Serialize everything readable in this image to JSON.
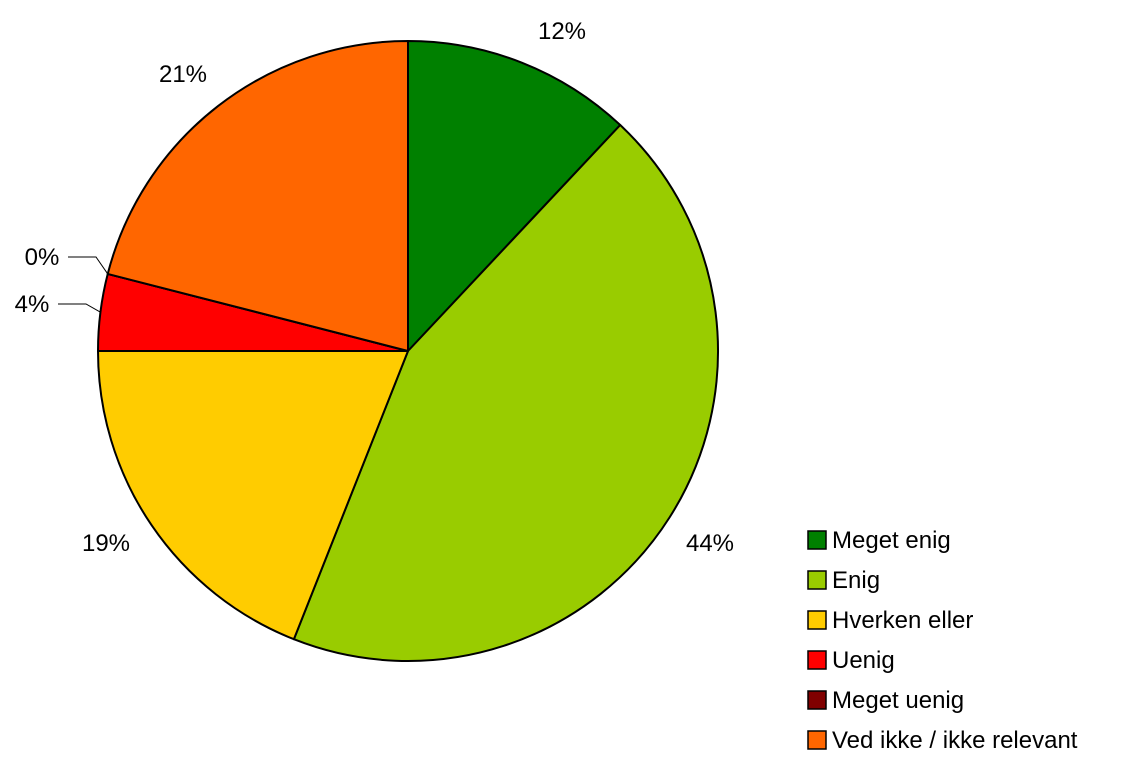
{
  "chart_data": {
    "type": "pie",
    "title": "",
    "legend_position": "bottom-right",
    "slices": [
      {
        "name": "Meget enig",
        "value": 12,
        "label": "12%",
        "color": "#008000"
      },
      {
        "name": "Enig",
        "value": 44,
        "label": "44%",
        "color": "#99CC00"
      },
      {
        "name": "Hverken eller",
        "value": 19,
        "label": "19%",
        "color": "#FFCC00"
      },
      {
        "name": "Uenig",
        "value": 4,
        "label": "4%",
        "color": "#FF0000"
      },
      {
        "name": "Meget uenig",
        "value": 0,
        "label": "0%",
        "color": "#800000"
      },
      {
        "name": "Ved ikke / ikke relevant",
        "value": 21,
        "label": "21%",
        "color": "#FF6600"
      }
    ]
  }
}
